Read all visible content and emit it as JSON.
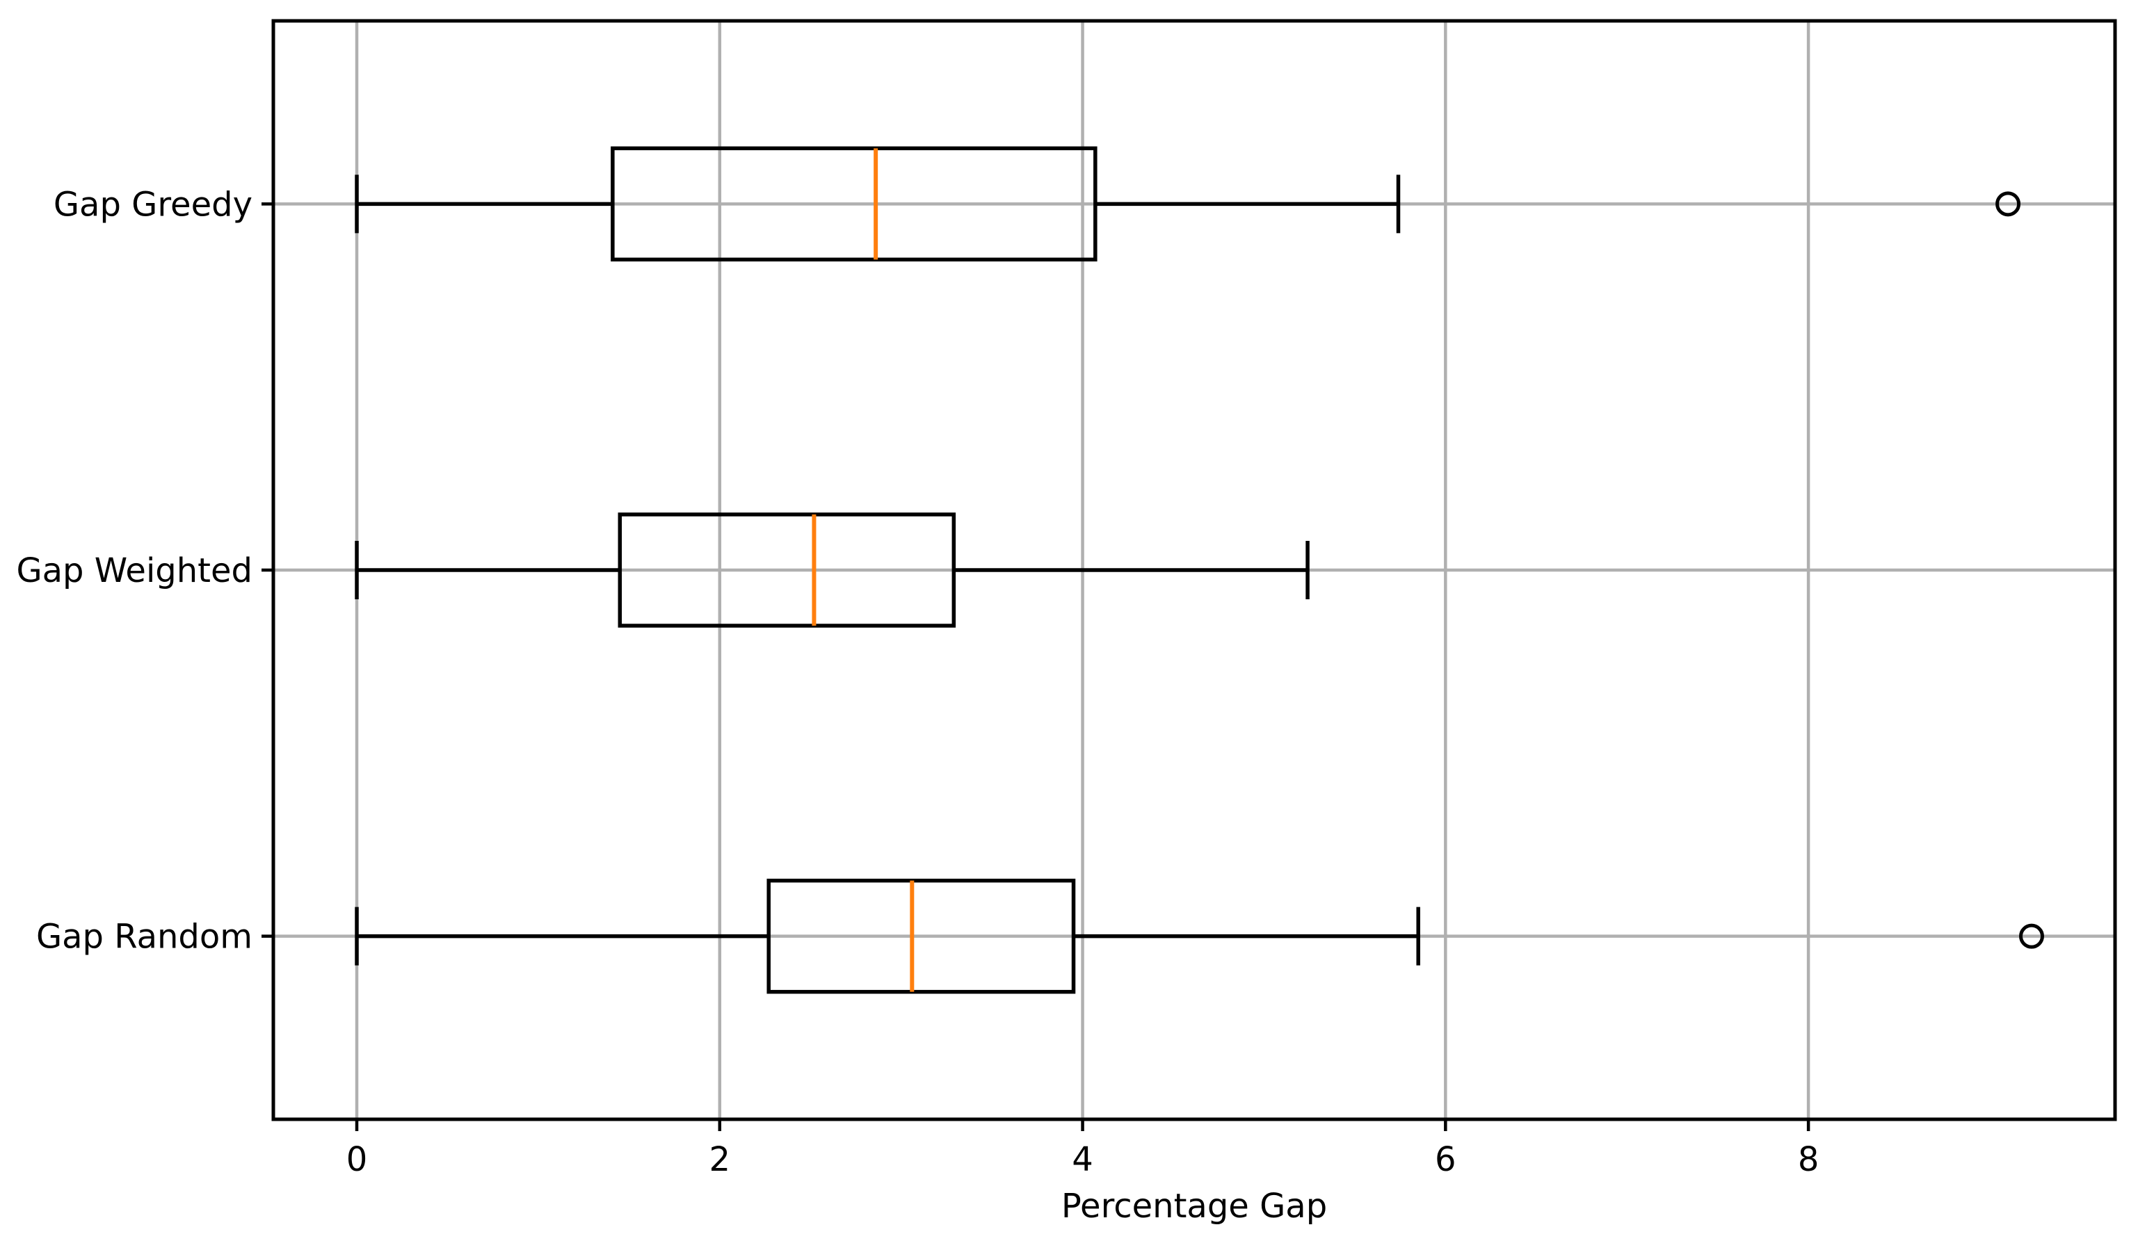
{
  "chart_data": {
    "type": "boxplot",
    "orientation": "horizontal",
    "title": "",
    "xlabel": "Percentage Gap",
    "ylabel": "",
    "x_ticks": [
      0,
      2,
      4,
      6,
      8
    ],
    "xlim": [
      -0.46,
      9.69
    ],
    "ylim": [
      0.5,
      3.5
    ],
    "grid": true,
    "series": [
      {
        "label": "Gap Greedy",
        "position": 3,
        "whisker_low": 0.0,
        "q1": 1.41,
        "median": 2.86,
        "q3": 4.07,
        "whisker_high": 5.74,
        "outliers": [
          9.1
        ]
      },
      {
        "label": "Gap Weighted",
        "position": 2,
        "whisker_low": 0.0,
        "q1": 1.45,
        "median": 2.52,
        "q3": 3.29,
        "whisker_high": 5.24,
        "outliers": []
      },
      {
        "label": "Gap Random",
        "position": 1,
        "whisker_low": 0.0,
        "q1": 2.27,
        "median": 3.06,
        "q3": 3.95,
        "whisker_high": 5.85,
        "outliers": [
          9.23
        ]
      }
    ],
    "colors": {
      "box": "#000000",
      "median": "#ff7f0e",
      "grid": "#b0b0b0",
      "spine": "#000000",
      "background": "#ffffff",
      "text": "#000000"
    }
  }
}
